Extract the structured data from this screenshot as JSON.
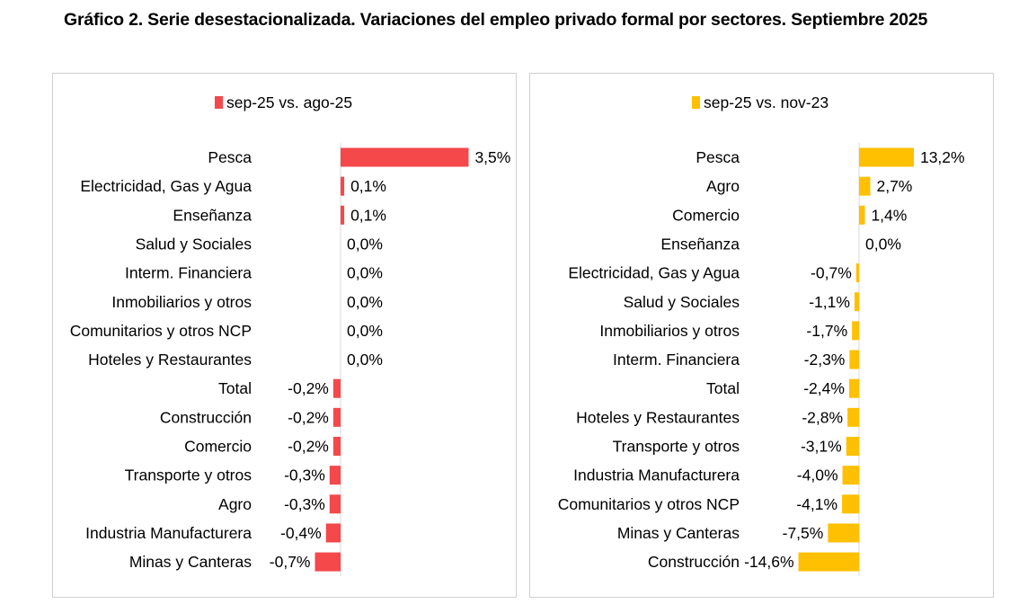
{
  "title": "Gráfico 2. Serie desestacionalizada. Variaciones del empleo privado formal por sectores. Septiembre 2025",
  "chart_data": [
    {
      "type": "bar",
      "orientation": "horizontal",
      "legend": "sep-25 vs. ago-25",
      "color": "#f4484b",
      "unit": "%",
      "categories": [
        "Pesca",
        "Electricidad, Gas y Agua",
        "Enseñanza",
        "Salud y Sociales",
        "Interm. Financiera",
        "Inmobiliarios y otros",
        "Comunitarios y otros NCP",
        "Hoteles y Restaurantes",
        "Total",
        "Construcción",
        "Comercio",
        "Transporte y otros",
        "Agro",
        "Industria Manufacturera",
        "Minas y Canteras"
      ],
      "values": [
        3.5,
        0.1,
        0.1,
        0.0,
        0.0,
        0.0,
        0.0,
        0.0,
        -0.2,
        -0.2,
        -0.2,
        -0.3,
        -0.3,
        -0.4,
        -0.7
      ],
      "labels": [
        "3,5%",
        "0,1%",
        "0,1%",
        "0,0%",
        "0,0%",
        "0,0%",
        "0,0%",
        "0,0%",
        "-0,2%",
        "-0,2%",
        "-0,2%",
        "-0,3%",
        "-0,3%",
        "-0,4%",
        "-0,7%"
      ]
    },
    {
      "type": "bar",
      "orientation": "horizontal",
      "legend": "sep-25 vs. nov-23",
      "color": "#fec000",
      "unit": "%",
      "categories": [
        "Pesca",
        "Agro",
        "Comercio",
        "Enseñanza",
        "Electricidad, Gas y Agua",
        "Salud y Sociales",
        "Inmobiliarios y otros",
        "Interm. Financiera",
        "Total",
        "Hoteles y Restaurantes",
        "Transporte y otros",
        "Industria Manufacturera",
        "Comunitarios y otros NCP",
        "Minas y Canteras",
        "Construcción"
      ],
      "values": [
        13.2,
        2.7,
        1.4,
        0.0,
        -0.7,
        -1.1,
        -1.7,
        -2.3,
        -2.4,
        -2.8,
        -3.1,
        -4.0,
        -4.1,
        -7.5,
        -14.6
      ],
      "labels": [
        "13,2%",
        "2,7%",
        "1,4%",
        "0,0%",
        "-0,7%",
        "-1,1%",
        "-1,7%",
        "-2,3%",
        "-2,4%",
        "-2,8%",
        "-3,1%",
        "-4,0%",
        "-4,1%",
        "-7,5%",
        "-14,6%"
      ]
    }
  ]
}
